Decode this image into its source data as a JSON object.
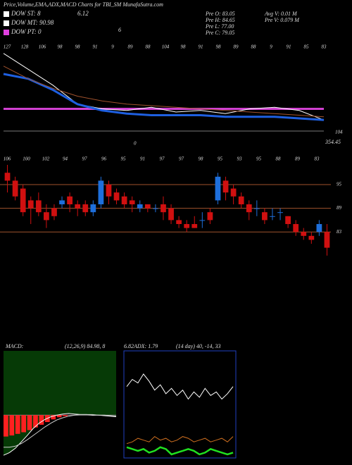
{
  "title": "Price,Volume,EMA,ADX,MACD Charts for TBI_SM MunafaSutra.com",
  "dow": [
    {
      "text": "DOW ST: 8",
      "color": "#ffffff"
    },
    {
      "text": "DOW MT: 90.98",
      "color": "#ffffff"
    },
    {
      "text": "DOW PT: 0",
      "color": "#e040e0"
    }
  ],
  "dow_extra": [
    "6.12",
    "6"
  ],
  "pre": [
    "Pre O: 83.05",
    "Pre H: 84.65",
    "Pre L: 77.00",
    "Pre C: 79.05"
  ],
  "volume": [
    "Avg V: 0.01 M",
    "Pre V: 0.079 M"
  ],
  "chart_data": [
    {
      "type": "line",
      "top_labels": [
        "127",
        "128",
        "106",
        "98",
        "98",
        "91",
        "9",
        "89",
        "88",
        "104",
        "98",
        "91",
        "98",
        "89",
        "88",
        "9",
        "91",
        "85",
        "83"
      ],
      "annotations": [
        "104",
        "354.45",
        "0"
      ],
      "ylim": [
        75,
        135
      ],
      "hlines": [
        {
          "value": 93,
          "color": "#d040d0"
        },
        {
          "value": 79,
          "color": "#777777"
        }
      ],
      "series": [
        {
          "color": "#ffffff",
          "values": [
            128,
            118,
            108,
            96,
            93,
            92,
            94,
            91,
            92,
            90,
            93,
            94,
            92,
            86
          ]
        },
        {
          "color": "#1e5fe0",
          "values": [
            115,
            112,
            105,
            96,
            92,
            90,
            89,
            89,
            89,
            88,
            88,
            88,
            87,
            86
          ]
        },
        {
          "color": "#a0522d",
          "values": [
            120,
            112,
            106,
            101,
            98,
            96,
            95,
            94,
            93,
            92,
            91,
            90,
            89,
            88
          ]
        }
      ]
    },
    {
      "type": "candlestick",
      "top_labels": [
        "106",
        "100",
        "102",
        "94",
        "97",
        "96",
        "95",
        "91",
        "97",
        "97",
        "98",
        "95",
        "93",
        "95",
        "88",
        "89",
        "83"
      ],
      "ylim": [
        75,
        105
      ],
      "yticks": [
        83,
        89,
        95
      ],
      "grid_color": "#a0522d",
      "up_color": "#1e6fdc",
      "down_color": "#d01010",
      "open": [
        98,
        96,
        94,
        91,
        91,
        88,
        89,
        90,
        92,
        90,
        90,
        88,
        90,
        95,
        93,
        92,
        91,
        89,
        90,
        89,
        90,
        89,
        86,
        85,
        85,
        86,
        88,
        91,
        96,
        94,
        92,
        90,
        89,
        88,
        87,
        88,
        87,
        85,
        83,
        82,
        83,
        83
      ],
      "close": [
        96,
        92,
        88,
        89,
        88,
        86,
        87,
        91,
        90,
        89,
        88,
        90,
        96,
        92,
        91,
        90,
        90,
        90,
        89,
        89,
        88,
        86,
        85,
        84,
        84,
        86,
        86,
        97,
        93,
        92,
        90,
        88,
        89,
        86,
        87,
        88,
        85,
        83,
        82,
        81,
        85,
        79
      ],
      "high": [
        100,
        97,
        95,
        92,
        93,
        90,
        90,
        92,
        93,
        91,
        91,
        91,
        97,
        96,
        94,
        93,
        92,
        91,
        90,
        90,
        92,
        90,
        87,
        86,
        87,
        88,
        89,
        98,
        97,
        95,
        93,
        91,
        91,
        89,
        89,
        89,
        87,
        86,
        84,
        83,
        86,
        85
      ],
      "low": [
        93,
        91,
        87,
        85,
        87,
        84,
        86,
        89,
        88,
        87,
        87,
        87,
        89,
        90,
        90,
        89,
        88,
        88,
        88,
        88,
        86,
        85,
        84,
        83,
        84,
        84,
        85,
        90,
        91,
        90,
        89,
        86,
        87,
        85,
        86,
        86,
        84,
        82,
        81,
        80,
        82,
        77
      ]
    },
    {
      "type": "macd",
      "title": "MACD:",
      "params": "(12,26,9) 84.98, 8",
      "value": "6.82",
      "ylim": [
        -8,
        12
      ],
      "background": "#063a06",
      "hist_color": "#ff2020",
      "series": [
        {
          "color": "#ffffff",
          "values": [
            -7.5,
            -7,
            -6.2,
            -5,
            -3.8,
            -2.5,
            -1.5,
            -0.8,
            -0.3,
            0,
            0.2,
            0.3,
            0.2,
            0.1,
            0.1,
            0,
            0,
            -0.1,
            -0.2,
            -0.3
          ]
        },
        {
          "color": "#cccccc",
          "values": [
            -6,
            -6,
            -5.8,
            -5.3,
            -4.6,
            -3.8,
            -3,
            -2.2,
            -1.5,
            -0.9,
            -0.5,
            -0.2,
            0,
            0.1,
            0.1,
            0.1,
            0,
            0,
            -0.1,
            -0.2
          ]
        }
      ],
      "hist": [
        -4,
        -3.8,
        -3.5,
        -3.2,
        -2.8,
        -2.3,
        -1.8,
        -1.3,
        -0.8,
        -0.4,
        -0.2,
        0,
        0,
        0,
        0,
        0,
        0,
        0,
        0,
        0
      ]
    },
    {
      "type": "adx",
      "title": "ADX: 1.79",
      "params": "(14 day) 40, -14, 33",
      "ylim": [
        0,
        60
      ],
      "border": "#2040c0",
      "series": [
        {
          "color": "#ffffff",
          "values": [
            40,
            44,
            42,
            47,
            43,
            38,
            41,
            36,
            39,
            35,
            38,
            33,
            37,
            34,
            39,
            35,
            37,
            33,
            36,
            40
          ]
        },
        {
          "color": "#d07020",
          "values": [
            8,
            9,
            11,
            10,
            9,
            12,
            10,
            11,
            9,
            10,
            12,
            11,
            9,
            10,
            11,
            9,
            10,
            11,
            9,
            12
          ]
        },
        {
          "color": "#20e020",
          "values": [
            6,
            5,
            4,
            5,
            3,
            4,
            6,
            5,
            2,
            3,
            4,
            5,
            4,
            2,
            3,
            5,
            4,
            3,
            2,
            3
          ]
        }
      ]
    }
  ]
}
